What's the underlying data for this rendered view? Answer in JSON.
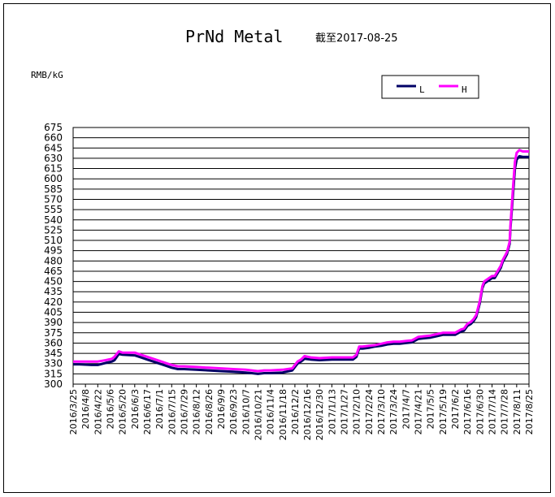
{
  "chart_data": {
    "type": "line",
    "title": "PrNd Metal",
    "subtitle": "截至2017-08-25",
    "ylabel": "RMB/kG",
    "ylim": [
      300,
      675
    ],
    "ytick_step": 15,
    "yticks": [
      "675",
      "660",
      "645",
      "630",
      "615",
      "600",
      "585",
      "570",
      "555",
      "540",
      "525",
      "510",
      "495",
      "480",
      "465",
      "450",
      "435",
      "420",
      "405",
      "390",
      "375",
      "360",
      "345",
      "330",
      "315",
      "300"
    ],
    "x_range": [
      "2016-03-25",
      "2017-08-25"
    ],
    "xticks": [
      "2016/3/25",
      "2016/4/8",
      "2016/4/22",
      "2016/5/6",
      "2016/5/20",
      "2016/6/3",
      "2016/6/17",
      "2016/7/1",
      "2016/7/15",
      "2016/7/29",
      "2016/8/12",
      "2016/8/26",
      "2016/9/9",
      "2016/9/23",
      "2016/10/7",
      "2016/10/21",
      "2016/11/4",
      "2016/11/18",
      "2016/12/2",
      "2016/12/16",
      "2016/12/30",
      "2017/1/13",
      "2017/1/27",
      "2017/2/10",
      "2017/2/24",
      "2017/3/10",
      "2017/3/24",
      "2017/4/7",
      "2017/4/21",
      "2017/5/5",
      "2017/5/19",
      "2017/6/2",
      "2017/6/16",
      "2017/6/30",
      "2017/7/14",
      "2017/7/28",
      "2017/8/11",
      "2017/8/25"
    ],
    "grid": true,
    "legend": "top-right",
    "series": [
      {
        "name": "L",
        "color": "#000066",
        "x": [
          "2016-03-25",
          "2016-04-01",
          "2016-04-15",
          "2016-04-22",
          "2016-05-01",
          "2016-05-08",
          "2016-05-11",
          "2016-05-16",
          "2016-05-20",
          "2016-06-03",
          "2016-06-10",
          "2016-06-17",
          "2016-06-24",
          "2016-07-01",
          "2016-07-08",
          "2016-07-15",
          "2016-07-22",
          "2016-07-29",
          "2016-08-12",
          "2016-08-26",
          "2016-09-09",
          "2016-09-23",
          "2016-10-07",
          "2016-10-14",
          "2016-10-21",
          "2016-10-28",
          "2016-11-04",
          "2016-11-18",
          "2016-11-29",
          "2016-12-05",
          "2016-12-09",
          "2016-12-13",
          "2016-12-20",
          "2016-12-30",
          "2017-01-13",
          "2017-01-27",
          "2017-02-06",
          "2017-02-10",
          "2017-02-13",
          "2017-02-17",
          "2017-02-24",
          "2017-03-03",
          "2017-03-10",
          "2017-03-17",
          "2017-03-24",
          "2017-03-31",
          "2017-04-07",
          "2017-04-14",
          "2017-04-21",
          "2017-04-28",
          "2017-05-05",
          "2017-05-12",
          "2017-05-19",
          "2017-05-26",
          "2017-06-02",
          "2017-06-09",
          "2017-06-12",
          "2017-06-16",
          "2017-06-20",
          "2017-06-23",
          "2017-06-26",
          "2017-06-30",
          "2017-07-03",
          "2017-07-05",
          "2017-07-14",
          "2017-07-17",
          "2017-07-24",
          "2017-07-26",
          "2017-07-31",
          "2017-08-03",
          "2017-08-04",
          "2017-08-07",
          "2017-08-09",
          "2017-08-11",
          "2017-08-14",
          "2017-08-18",
          "2017-08-25"
        ],
        "values": [
          329,
          329,
          328,
          328,
          331,
          333,
          335,
          344,
          343,
          342,
          339,
          336,
          333,
          330,
          327,
          324,
          322,
          322,
          321,
          320,
          319,
          318,
          317,
          316,
          315,
          316,
          316,
          317,
          320,
          330,
          333,
          337,
          336,
          335,
          336,
          336,
          336,
          340,
          352,
          352,
          353,
          355,
          356,
          358,
          359,
          359,
          360,
          361,
          366,
          367,
          368,
          370,
          372,
          372,
          372,
          377,
          378,
          385,
          388,
          392,
          398,
          418,
          440,
          447,
          455,
          455,
          470,
          478,
          490,
          505,
          530,
          580,
          615,
          628,
          633,
          632,
          632
        ]
      },
      {
        "name": "H",
        "color": "#ff00ff",
        "x": [
          "2016-03-25",
          "2016-04-01",
          "2016-04-15",
          "2016-04-22",
          "2016-05-01",
          "2016-05-08",
          "2016-05-11",
          "2016-05-16",
          "2016-05-20",
          "2016-06-03",
          "2016-06-10",
          "2016-06-17",
          "2016-06-24",
          "2016-07-01",
          "2016-07-08",
          "2016-07-15",
          "2016-07-22",
          "2016-07-29",
          "2016-08-12",
          "2016-08-26",
          "2016-09-09",
          "2016-09-23",
          "2016-10-07",
          "2016-10-14",
          "2016-10-21",
          "2016-10-28",
          "2016-11-04",
          "2016-11-18",
          "2016-11-29",
          "2016-12-05",
          "2016-12-09",
          "2016-12-13",
          "2016-12-20",
          "2016-12-30",
          "2017-01-13",
          "2017-01-27",
          "2017-02-06",
          "2017-02-10",
          "2017-02-13",
          "2017-02-17",
          "2017-02-24",
          "2017-03-03",
          "2017-03-10",
          "2017-03-17",
          "2017-03-24",
          "2017-03-31",
          "2017-04-07",
          "2017-04-14",
          "2017-04-21",
          "2017-04-28",
          "2017-05-05",
          "2017-05-12",
          "2017-05-19",
          "2017-05-26",
          "2017-06-02",
          "2017-06-09",
          "2017-06-12",
          "2017-06-16",
          "2017-06-20",
          "2017-06-23",
          "2017-06-26",
          "2017-06-30",
          "2017-07-03",
          "2017-07-05",
          "2017-07-14",
          "2017-07-17",
          "2017-07-24",
          "2017-07-26",
          "2017-07-31",
          "2017-08-03",
          "2017-08-04",
          "2017-08-07",
          "2017-08-09",
          "2017-08-11",
          "2017-08-14",
          "2017-08-18",
          "2017-08-25"
        ],
        "values": [
          333,
          333,
          333,
          333,
          335,
          337,
          340,
          348,
          346,
          346,
          343,
          340,
          337,
          334,
          331,
          328,
          326,
          326,
          325,
          324,
          323,
          322,
          321,
          320,
          319,
          320,
          320,
          321,
          323,
          333,
          336,
          341,
          339,
          338,
          339,
          339,
          339,
          343,
          355,
          355,
          356,
          357,
          359,
          361,
          362,
          362,
          363,
          364,
          369,
          370,
          371,
          373,
          375,
          375,
          375,
          380,
          381,
          388,
          391,
          395,
          401,
          421,
          443,
          450,
          458,
          458,
          473,
          481,
          493,
          508,
          535,
          590,
          625,
          638,
          642,
          640,
          640
        ]
      }
    ]
  }
}
